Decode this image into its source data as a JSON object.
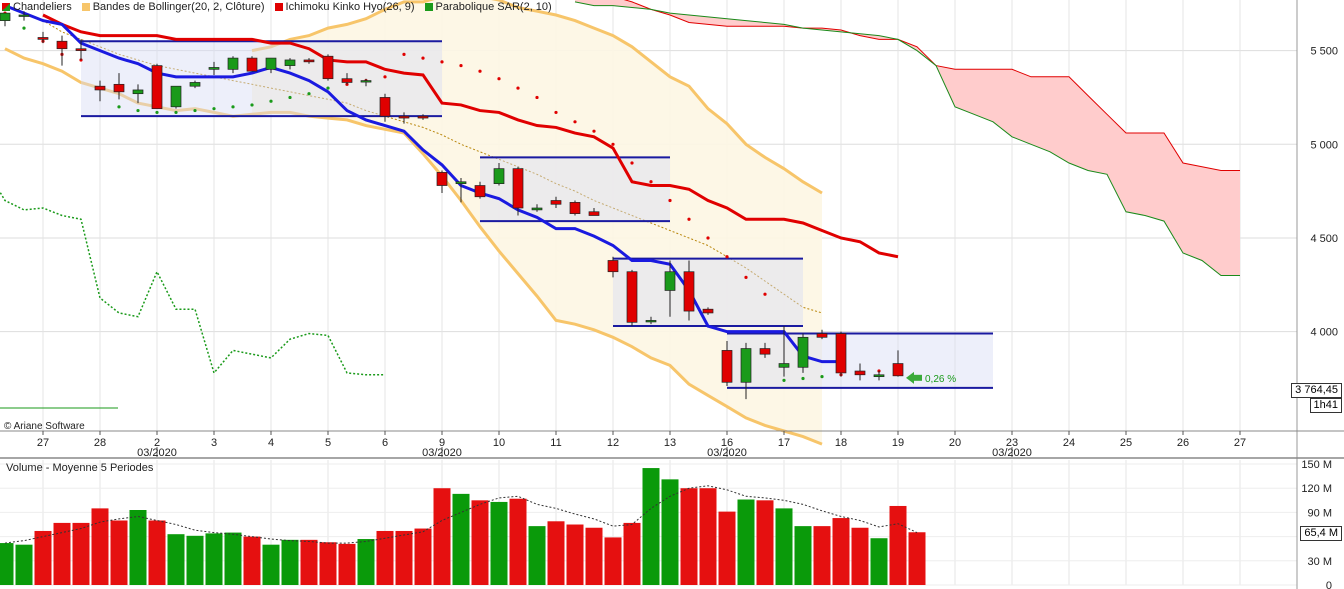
{
  "legend": [
    {
      "label": "Chandeliers",
      "color": "#1a9a1a",
      "icon": "candles-icon"
    },
    {
      "label": "Bandes de Bollinger(20, 2, Clôture)",
      "color": "#f7c56a",
      "icon": "bollinger-icon"
    },
    {
      "label": "Ichimoku Kinko Hyo(26, 9)",
      "color": "#e00000",
      "icon": "ichimoku-icon"
    },
    {
      "label": "Parabolique SAR(2, 10)",
      "color": "#1a9a1a",
      "icon": "sar-icon"
    }
  ],
  "copyright": "© Ariane Software",
  "volume_title": "Volume  - Moyenne 5 Periodes",
  "last_price_label": "3 764,45",
  "timer_label": "1h41",
  "volume_value_label": "65,4 M",
  "change_annotation": "0,26 %",
  "chart_data": {
    "type": "candlestick",
    "price_axis": {
      "ticks": [
        5500,
        5000,
        4500,
        4000
      ],
      "tick_labels": [
        "5 500",
        "5 000",
        "4 500",
        "4 000"
      ],
      "range": [
        3470,
        5770
      ]
    },
    "volume_axis": {
      "ticks": [
        150,
        120,
        90,
        60,
        30,
        0
      ],
      "tick_labels": [
        "150 M",
        "120 M",
        "90 M",
        "60 M",
        "30 M",
        "0"
      ],
      "range": [
        0,
        155
      ]
    },
    "x_labels": [
      {
        "day": "27",
        "index": 2
      },
      {
        "day": "28",
        "index": 5
      },
      {
        "day": "2",
        "index": 8,
        "month": "03/2020"
      },
      {
        "day": "3",
        "index": 11
      },
      {
        "day": "4",
        "index": 14
      },
      {
        "day": "5",
        "index": 17
      },
      {
        "day": "6",
        "index": 20
      },
      {
        "day": "9",
        "index": 23,
        "month": "03/2020"
      },
      {
        "day": "10",
        "index": 26
      },
      {
        "day": "11",
        "index": 29
      },
      {
        "day": "12",
        "index": 32
      },
      {
        "day": "13",
        "index": 35
      },
      {
        "day": "16",
        "index": 38,
        "month": "03/2020"
      },
      {
        "day": "17",
        "index": 41
      },
      {
        "day": "18",
        "index": 44
      },
      {
        "day": "19",
        "index": 47
      },
      {
        "day": "20",
        "index": 50
      },
      {
        "day": "23",
        "index": 53,
        "month": "03/2020"
      },
      {
        "day": "24",
        "index": 56
      },
      {
        "day": "25",
        "index": 59
      },
      {
        "day": "26",
        "index": 62
      },
      {
        "day": "27",
        "index": 65
      }
    ],
    "candles": [
      {
        "o": 5660,
        "h": 5700,
        "l": 5630,
        "c": 5700
      },
      {
        "o": 5690,
        "h": 5710,
        "l": 5660,
        "c": 5690
      },
      {
        "o": 5570,
        "h": 5600,
        "l": 5540,
        "c": 5560
      },
      {
        "o": 5550,
        "h": 5580,
        "l": 5420,
        "c": 5510
      },
      {
        "o": 5510,
        "h": 5560,
        "l": 5450,
        "c": 5500
      },
      {
        "o": 5310,
        "h": 5340,
        "l": 5230,
        "c": 5290
      },
      {
        "o": 5320,
        "h": 5380,
        "l": 5240,
        "c": 5280
      },
      {
        "o": 5270,
        "h": 5320,
        "l": 5220,
        "c": 5290
      },
      {
        "o": 5420,
        "h": 5430,
        "l": 5190,
        "c": 5190
      },
      {
        "o": 5200,
        "h": 5310,
        "l": 5190,
        "c": 5310
      },
      {
        "o": 5310,
        "h": 5340,
        "l": 5300,
        "c": 5330
      },
      {
        "o": 5400,
        "h": 5440,
        "l": 5370,
        "c": 5410
      },
      {
        "o": 5400,
        "h": 5470,
        "l": 5380,
        "c": 5460
      },
      {
        "o": 5460,
        "h": 5470,
        "l": 5390,
        "c": 5390
      },
      {
        "o": 5400,
        "h": 5450,
        "l": 5380,
        "c": 5460
      },
      {
        "o": 5420,
        "h": 5460,
        "l": 5400,
        "c": 5450
      },
      {
        "o": 5450,
        "h": 5460,
        "l": 5430,
        "c": 5440
      },
      {
        "o": 5470,
        "h": 5480,
        "l": 5340,
        "c": 5350
      },
      {
        "o": 5350,
        "h": 5380,
        "l": 5320,
        "c": 5330
      },
      {
        "o": 5340,
        "h": 5350,
        "l": 5310,
        "c": 5340
      },
      {
        "o": 5250,
        "h": 5270,
        "l": 5120,
        "c": 5150
      },
      {
        "o": 5150,
        "h": 5170,
        "l": 5110,
        "c": 5140
      },
      {
        "o": 5150,
        "h": 5160,
        "l": 5130,
        "c": 5140
      },
      {
        "o": 4850,
        "h": 4860,
        "l": 4740,
        "c": 4780
      },
      {
        "o": 4790,
        "h": 4820,
        "l": 4690,
        "c": 4800
      },
      {
        "o": 4780,
        "h": 4800,
        "l": 4710,
        "c": 4720
      },
      {
        "o": 4790,
        "h": 4900,
        "l": 4780,
        "c": 4870
      },
      {
        "o": 4870,
        "h": 4880,
        "l": 4620,
        "c": 4660
      },
      {
        "o": 4650,
        "h": 4680,
        "l": 4640,
        "c": 4660
      },
      {
        "o": 4700,
        "h": 4720,
        "l": 4660,
        "c": 4680
      },
      {
        "o": 4690,
        "h": 4700,
        "l": 4620,
        "c": 4630
      },
      {
        "o": 4640,
        "h": 4660,
        "l": 4620,
        "c": 4620
      },
      {
        "o": 4380,
        "h": 4400,
        "l": 4290,
        "c": 4320
      },
      {
        "o": 4320,
        "h": 4330,
        "l": 4030,
        "c": 4050
      },
      {
        "o": 4060,
        "h": 4080,
        "l": 4040,
        "c": 4060
      },
      {
        "o": 4220,
        "h": 4380,
        "l": 4080,
        "c": 4320
      },
      {
        "o": 4320,
        "h": 4380,
        "l": 4060,
        "c": 4110
      },
      {
        "o": 4120,
        "h": 4130,
        "l": 4090,
        "c": 4100
      },
      {
        "o": 3900,
        "h": 3950,
        "l": 3710,
        "c": 3730
      },
      {
        "o": 3730,
        "h": 3940,
        "l": 3640,
        "c": 3910
      },
      {
        "o": 3910,
        "h": 3940,
        "l": 3860,
        "c": 3880
      },
      {
        "o": 3810,
        "h": 4030,
        "l": 3760,
        "c": 3830
      },
      {
        "o": 3810,
        "h": 3990,
        "l": 3780,
        "c": 3970
      },
      {
        "o": 3990,
        "h": 4010,
        "l": 3960,
        "c": 3970
      },
      {
        "o": 3990,
        "h": 4000,
        "l": 3760,
        "c": 3780
      },
      {
        "o": 3790,
        "h": 3830,
        "l": 3740,
        "c": 3770
      },
      {
        "o": 3760,
        "h": 3790,
        "l": 3740,
        "c": 3770
      },
      {
        "o": 3830,
        "h": 3900,
        "l": 3760,
        "c": 3764.45
      }
    ],
    "volumes": [
      52,
      50,
      67,
      77,
      77,
      95,
      80,
      93,
      80,
      63,
      61,
      64,
      65,
      60,
      50,
      56,
      56,
      53,
      51,
      57,
      67,
      67,
      70,
      120,
      113,
      105,
      103,
      107,
      73,
      79,
      75,
      71,
      59,
      77,
      145,
      131,
      120,
      120,
      91,
      106,
      105,
      95,
      73,
      73,
      83,
      71,
      58,
      98,
      65.4
    ],
    "volume_average": [
      52,
      55,
      60,
      65,
      70,
      78,
      82,
      85,
      80,
      75,
      68,
      65,
      63,
      60,
      57,
      55,
      54,
      52,
      52,
      54,
      58,
      62,
      66,
      80,
      90,
      100,
      108,
      110,
      100,
      95,
      88,
      82,
      73,
      75,
      95,
      110,
      120,
      123,
      118,
      110,
      108,
      105,
      100,
      92,
      85,
      80,
      72,
      76,
      65
    ],
    "bollinger_upper": [
      null,
      null,
      null,
      null,
      null,
      null,
      null,
      null,
      null,
      null,
      null,
      null,
      null,
      5500,
      5520,
      5560,
      5580,
      5620,
      5640,
      5670,
      5720,
      5760,
      5760,
      5790,
      5800,
      5790,
      5770,
      5730,
      5710,
      5690,
      5660,
      5620,
      5580,
      5520,
      5440,
      5360,
      5310,
      5190,
      5110,
      5000,
      4930,
      4870,
      4800,
      4740
    ],
    "bollinger_lower": [
      5510,
      5460,
      5430,
      5390,
      5330,
      5300,
      5270,
      5220,
      5200,
      5180,
      5190,
      5170,
      5150,
      5160,
      5170,
      5170,
      5150,
      5140,
      5130,
      5100,
      5080,
      5060,
      4950,
      4830,
      4700,
      4560,
      4430,
      4310,
      4190,
      4060,
      4040,
      4010,
      3970,
      3920,
      3860,
      3820,
      3720,
      3660,
      3600,
      3540,
      3500,
      3470,
      3440,
      3400
    ],
    "tenkan": [
      5690,
      5640,
      5600,
      5580,
      5580,
      5580,
      5580,
      5560,
      5560,
      5560,
      5560,
      5560,
      5540,
      5540,
      5510,
      5450,
      5440,
      5440,
      5400,
      5380,
      5370,
      5220,
      5210,
      5180,
      5170,
      5130,
      5100,
      5090,
      5060,
      5040,
      4980,
      4800,
      4780,
      4780,
      4760,
      4700,
      4660,
      4600,
      4600,
      4600,
      4580,
      4540,
      4500,
      4480,
      4420,
      4400
    ],
    "kijun": [
      5740,
      5700,
      5660,
      5640,
      5540,
      5500,
      5460,
      5430,
      5380,
      5360,
      5360,
      5360,
      5360,
      5380,
      5410,
      5380,
      5340,
      5280,
      5180,
      5130,
      5100,
      5070,
      4970,
      4890,
      4780,
      4740,
      4710,
      4650,
      4610,
      4550,
      4550,
      4510,
      4460,
      4380,
      4380,
      4360,
      4220,
      4030,
      4000,
      4000,
      4000,
      4000,
      3870,
      3840,
      3840
    ],
    "kumo_a": [
      5800,
      5800,
      5790,
      5760,
      5720,
      5690,
      5650,
      5640,
      5630,
      5630,
      5630,
      5630,
      5620,
      5620,
      5610,
      5580,
      5560,
      5560,
      5520,
      5420,
      5400,
      5400,
      5400,
      5400,
      5360,
      5360,
      5360,
      5260,
      5160,
      5060,
      5060,
      5060,
      4900,
      4880,
      4860,
      4860
    ],
    "kumo_b": [
      5760,
      5740,
      5740,
      5730,
      5720,
      5700,
      5690,
      5680,
      5670,
      5660,
      5650,
      5640,
      5620,
      5610,
      5600,
      5590,
      5580,
      5560,
      5500,
      5420,
      5200,
      5160,
      5120,
      5040,
      5000,
      4960,
      4900,
      4860,
      4840,
      4640,
      4620,
      4590,
      4420,
      4380,
      4300,
      4300
    ],
    "chikou": [
      4870,
      4700,
      4650,
      4660,
      4620,
      4600,
      4180,
      4100,
      4080,
      4320,
      4120,
      4120,
      3780,
      3900,
      3880,
      3860,
      3960,
      3990,
      3980,
      3780,
      3770,
      3770
    ],
    "sar": [
      5700,
      5620,
      5550,
      5480,
      5450,
      5300,
      5200,
      5180,
      5170,
      5170,
      5180,
      5190,
      5200,
      5210,
      5230,
      5250,
      5270,
      5300,
      5320,
      5340,
      5360,
      5480,
      5460,
      5440,
      5420,
      5390,
      5350,
      5300,
      5250,
      5170,
      5120,
      5070,
      5000,
      4900,
      4800,
      4700,
      4600,
      4500,
      4400,
      4290,
      4200,
      3740,
      3750,
      3760,
      3770,
      3780,
      3790,
      3800
    ],
    "sma": [
      5740,
      5700,
      5660,
      5600,
      5560,
      5520,
      5480,
      5450,
      5420,
      5400,
      5380,
      5360,
      5340,
      5320,
      5300,
      5280,
      5260,
      5240,
      5220,
      5180,
      5150,
      5120,
      5090,
      5050,
      5000,
      4960,
      4920,
      4880,
      4840,
      4790,
      4750,
      4700,
      4660,
      4620,
      4580,
      4540,
      4500,
      4460,
      4400,
      4340,
      4270,
      4200,
      4130,
      4100
    ],
    "channels": [
      {
        "start": 4,
        "end": 23,
        "top": 5550,
        "bottom": 5150
      },
      {
        "start": 25,
        "end": 35,
        "top": 4930,
        "bottom": 4590
      },
      {
        "start": 32,
        "end": 42,
        "top": 4390,
        "bottom": 4030
      },
      {
        "start": 38,
        "end": 52,
        "top": 3990,
        "bottom": 3700
      }
    ]
  }
}
